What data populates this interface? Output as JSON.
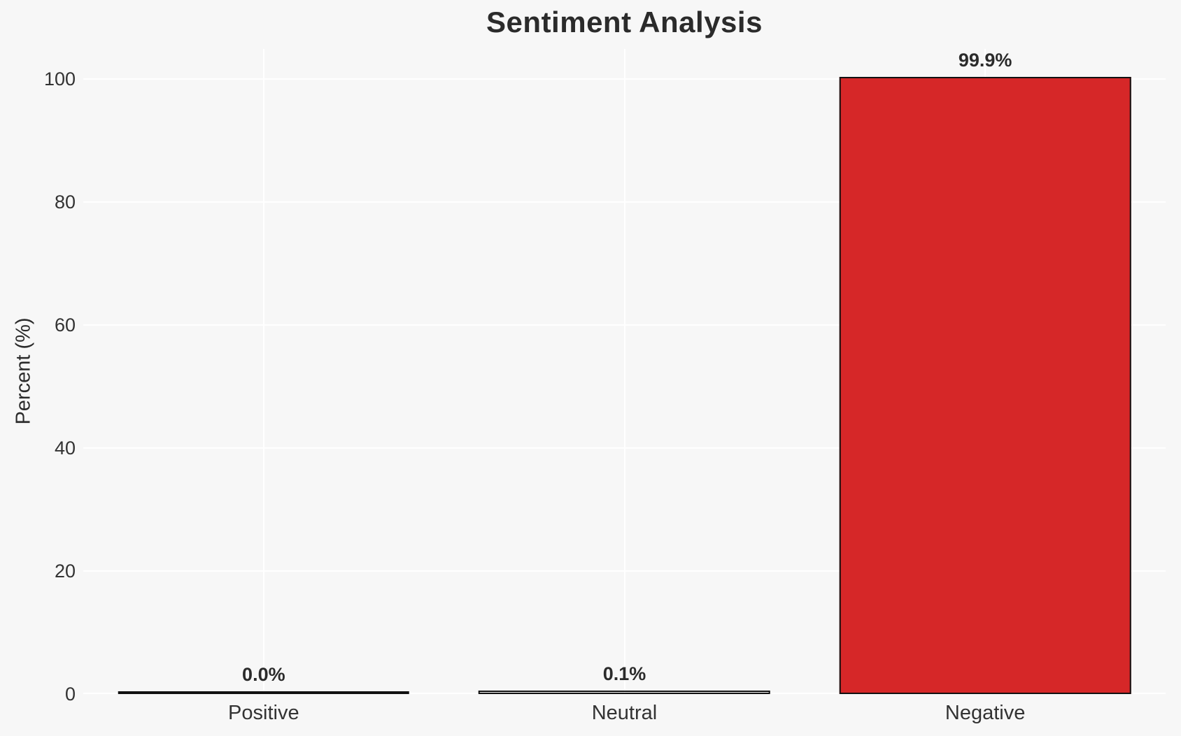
{
  "chart_data": {
    "type": "bar",
    "title": "Sentiment Analysis",
    "xlabel": "",
    "ylabel": "Percent (%)",
    "categories": [
      "Positive",
      "Neutral",
      "Negative"
    ],
    "values": [
      0.0,
      0.1,
      99.9
    ],
    "bars": [
      {
        "label": "Positive",
        "value": 0.0,
        "display": "0.0%",
        "fill": "none"
      },
      {
        "label": "Neutral",
        "value": 0.1,
        "display": "0.1%",
        "fill": "none"
      },
      {
        "label": "Negative",
        "value": 99.9,
        "display": "99.9%",
        "fill": "#d62728"
      }
    ],
    "yticks": [
      0,
      20,
      40,
      60,
      80,
      100
    ],
    "ylim": [
      0,
      104.9
    ],
    "grid": true,
    "legend": false,
    "colors": {
      "background": "#f7f7f7",
      "gridline": "#ffffff",
      "bar_fill": "#d62728",
      "bar_edge": "#111111",
      "title_text": "#2b2b2b",
      "tick_text": "#333333"
    }
  }
}
